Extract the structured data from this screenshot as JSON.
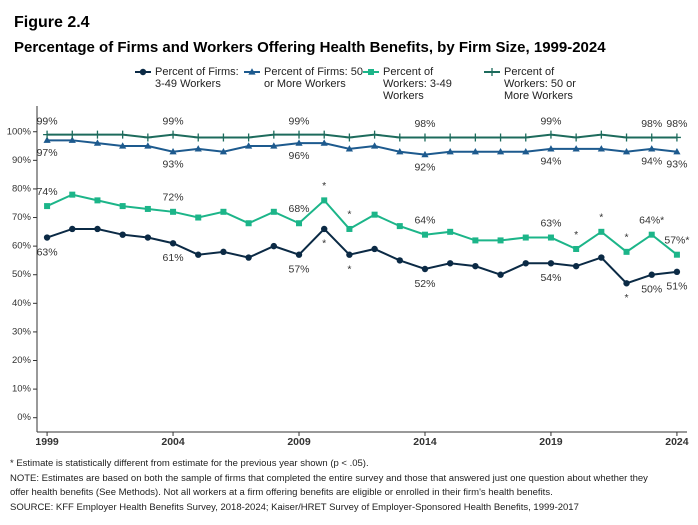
{
  "figure_label": "Figure 2.4",
  "chart_data": {
    "type": "line",
    "title": "Percentage of Firms and Workers Offering Health Benefits, by Firm Size, 1999-2024",
    "x": [
      1999,
      2000,
      2001,
      2002,
      2003,
      2004,
      2005,
      2006,
      2007,
      2008,
      2009,
      2010,
      2011,
      2012,
      2013,
      2014,
      2015,
      2016,
      2017,
      2018,
      2019,
      2020,
      2021,
      2022,
      2023,
      2024
    ],
    "xlim": [
      1998.6,
      2024.4
    ],
    "xticks": [
      1999,
      2004,
      2009,
      2014,
      2019,
      2024
    ],
    "ylim": [
      -5,
      109
    ],
    "yticks": [
      {
        "value": 0,
        "label": "0%"
      },
      {
        "value": 10,
        "label": "10%"
      },
      {
        "value": 20,
        "label": "20%"
      },
      {
        "value": 30,
        "label": "30%"
      },
      {
        "value": 40,
        "label": "40%"
      },
      {
        "value": 50,
        "label": "50%"
      },
      {
        "value": 60,
        "label": "60%"
      },
      {
        "value": 70,
        "label": "70%"
      },
      {
        "value": 80,
        "label": "80%"
      },
      {
        "value": 90,
        "label": "90%"
      },
      {
        "value": 100,
        "label": "100%"
      }
    ],
    "grid": false,
    "series": [
      {
        "name": "Percent of Firms: 3-49 Workers",
        "color": "#0b2a45",
        "marker": "circle",
        "values": [
          63,
          66,
          66,
          64,
          63,
          61,
          57,
          58,
          56,
          60,
          57,
          66,
          57,
          59,
          55,
          52,
          54,
          53,
          50,
          54,
          54,
          53,
          56,
          47,
          50,
          51
        ],
        "value_labels": [
          "63%",
          null,
          null,
          null,
          null,
          "61%",
          null,
          null,
          null,
          null,
          "57%",
          "*",
          "*",
          null,
          null,
          "52%",
          null,
          null,
          null,
          null,
          "54%",
          null,
          null,
          "*",
          "50%",
          "51%"
        ]
      },
      {
        "name": "Percent of Firms: 50 or More Workers",
        "color": "#1d5a8e",
        "marker": "triangle",
        "values": [
          97,
          97,
          96,
          95,
          95,
          93,
          94,
          93,
          95,
          95,
          96,
          96,
          94,
          95,
          93,
          92,
          93,
          93,
          93,
          93,
          94,
          94,
          94,
          93,
          94,
          93
        ],
        "value_labels": [
          "97%",
          null,
          null,
          null,
          null,
          "93%",
          null,
          null,
          null,
          null,
          "96%",
          null,
          null,
          null,
          null,
          "92%",
          null,
          null,
          null,
          null,
          "94%",
          null,
          null,
          null,
          "94%",
          "93%"
        ]
      },
      {
        "name": "Percent of Workers: 3-49 Workers",
        "color": "#1cb589",
        "marker": "square",
        "values": [
          74,
          78,
          76,
          74,
          73,
          72,
          70,
          72,
          68,
          72,
          68,
          76,
          66,
          71,
          67,
          64,
          65,
          62,
          62,
          63,
          63,
          59,
          65,
          58,
          64,
          57
        ],
        "value_labels": [
          "74%",
          null,
          null,
          null,
          null,
          "72%",
          null,
          null,
          null,
          null,
          "68%",
          "*",
          "*",
          null,
          null,
          "64%",
          null,
          null,
          null,
          null,
          "63%",
          "*",
          "*",
          "*",
          "64%*",
          "57%*"
        ]
      },
      {
        "name": "Percent of Workers: 50 or More Workers",
        "color": "#1d6b5c",
        "marker": "plus",
        "values": [
          99,
          99,
          99,
          99,
          98,
          99,
          98,
          98,
          98,
          99,
          99,
          99,
          98,
          99,
          98,
          98,
          98,
          98,
          98,
          98,
          99,
          98,
          99,
          98,
          98,
          98
        ],
        "value_labels": [
          "99%",
          null,
          null,
          null,
          null,
          "99%",
          null,
          null,
          null,
          null,
          "99%",
          null,
          null,
          null,
          null,
          "98%",
          null,
          null,
          null,
          null,
          "99%",
          null,
          null,
          null,
          "98%",
          "98%"
        ]
      }
    ]
  },
  "notes": [
    "* Estimate is statistically different from estimate for the previous year shown (p < .05).",
    "NOTE: Estimates are based on both the sample of firms that completed the entire survey and those that answered just one question about whether they",
    "offer health benefits (See Methods). Not all workers at a firm offering benefits are eligible or enrolled in their firm's health benefits.",
    "SOURCE: KFF Employer Health Benefits Survey, 2018-2024; Kaiser/HRET Survey of Employer-Sponsored Health Benefits, 1999-2017"
  ]
}
